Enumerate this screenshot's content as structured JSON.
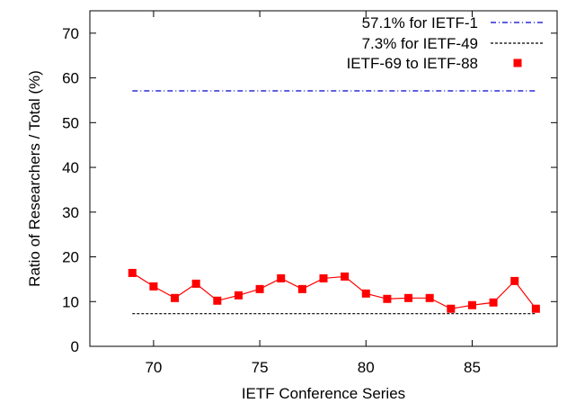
{
  "chart_data": {
    "type": "line",
    "title": "",
    "xlabel": "IETF Conference Series",
    "ylabel": "Ratio of Researchers / Total (%)",
    "xlim": [
      67,
      89
    ],
    "ylim": [
      0,
      75
    ],
    "xticks": [
      70,
      75,
      80,
      85
    ],
    "yticks": [
      0,
      10,
      20,
      30,
      40,
      50,
      60,
      70
    ],
    "grid": false,
    "legend_position": "top-right",
    "series": [
      {
        "name": "57.1% for IETF-1",
        "kind": "hline",
        "style": "dash-dot",
        "color": "#0000cc",
        "y": 57.1
      },
      {
        "name": "7.3% for IETF-49",
        "kind": "hline",
        "style": "dashed",
        "color": "#000000",
        "y": 7.3
      },
      {
        "name": "IETF-69 to IETF-88",
        "kind": "line-markers",
        "color": "#ff0000",
        "x": [
          69,
          70,
          71,
          72,
          73,
          74,
          75,
          76,
          77,
          78,
          79,
          80,
          81,
          82,
          83,
          84,
          85,
          86,
          87,
          88
        ],
        "y": [
          16.4,
          13.4,
          10.8,
          14.0,
          10.2,
          11.4,
          12.8,
          15.2,
          12.8,
          15.2,
          15.6,
          11.8,
          10.6,
          10.8,
          10.8,
          8.4,
          9.2,
          9.8,
          14.6,
          8.4
        ]
      }
    ]
  }
}
